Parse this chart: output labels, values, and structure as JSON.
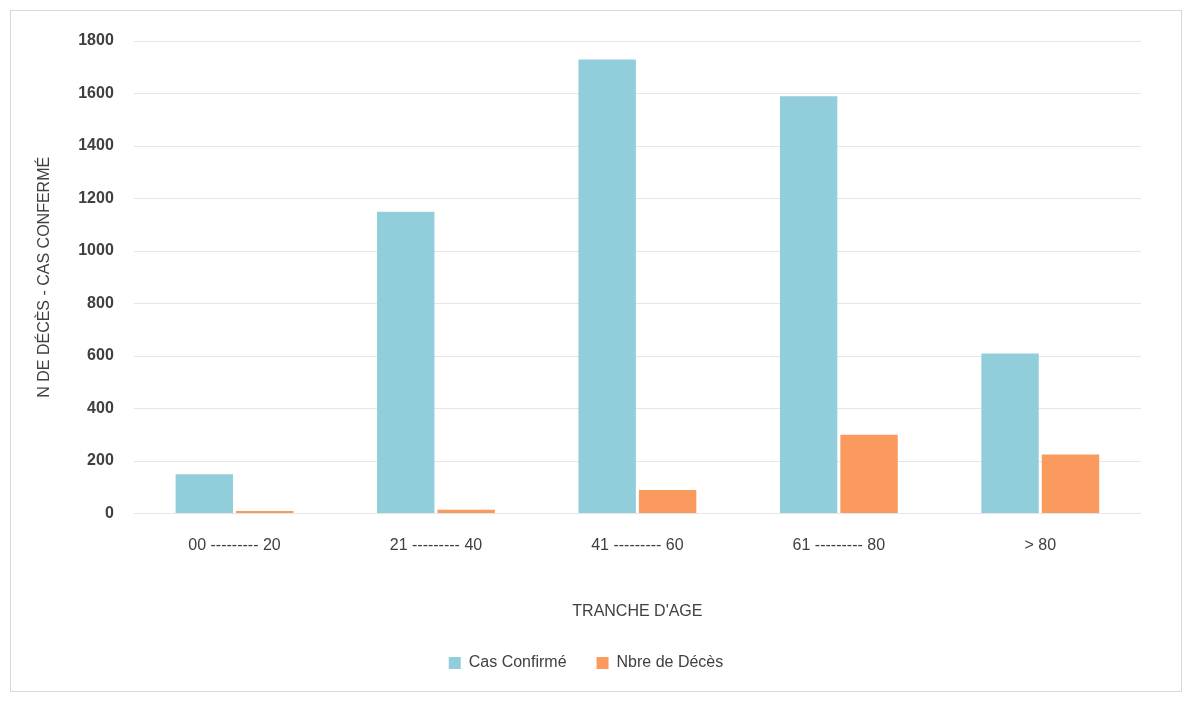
{
  "chart_data": {
    "type": "bar",
    "xlabel": "TRANCHE D'AGE",
    "ylabel": "N DE DÉCÈS - CAS CONFERMÉ",
    "categories": [
      "00 --------- 20",
      "21 --------- 40",
      "41 --------- 60",
      "61 --------- 80",
      "> 80"
    ],
    "series": [
      {
        "name": "Cas Confirmé",
        "color": "#92cddc",
        "values": [
          150,
          1150,
          1730,
          1590,
          610
        ]
      },
      {
        "name": "Nbre de Décès",
        "color": "#fb9a5e",
        "values": [
          10,
          15,
          90,
          300,
          225
        ]
      }
    ],
    "ylim": [
      0,
      1800
    ],
    "yticks": [
      0,
      200,
      400,
      600,
      800,
      1000,
      1200,
      1400,
      1600,
      1800
    ],
    "grid": "y",
    "legend": "bottom"
  }
}
